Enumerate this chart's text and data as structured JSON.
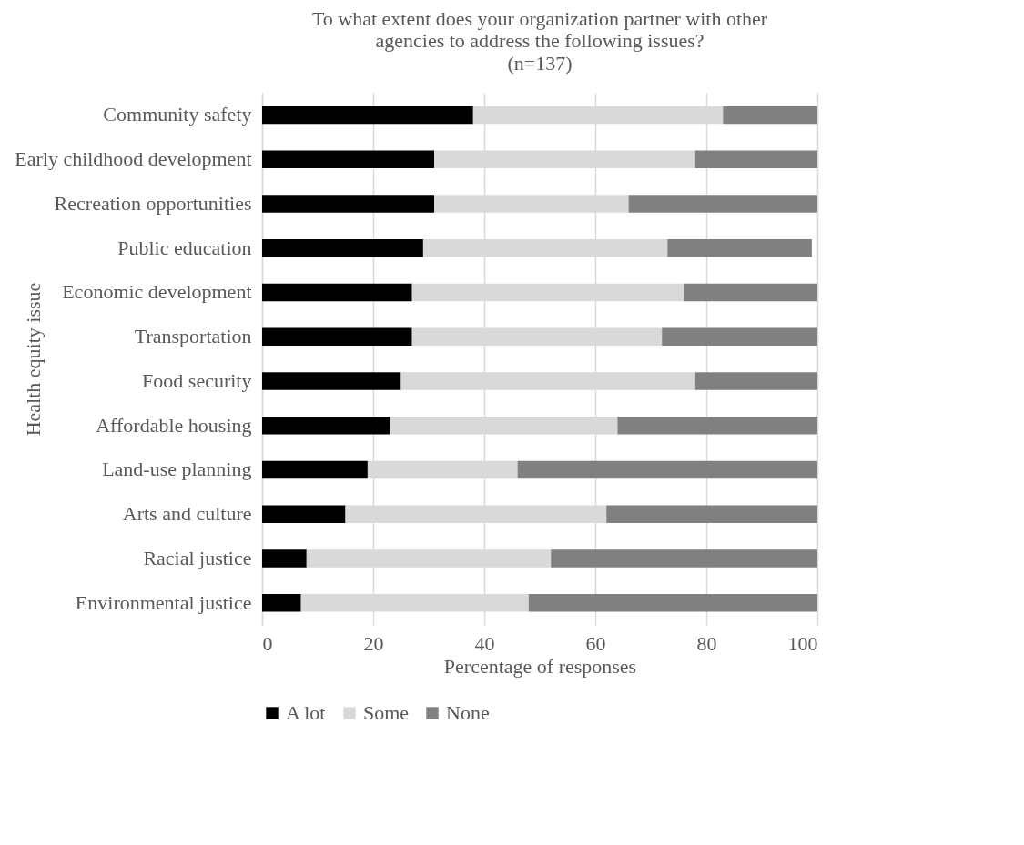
{
  "chart_data": {
    "type": "bar",
    "title": "To what extent does your organization partner with other agencies to address the following issues?",
    "subtitle": "(n=137)",
    "xlabel": "Percentage of responses",
    "ylabel": "Health equity issue",
    "orientation": "horizontal",
    "stacked": true,
    "categories": [
      "Community safety",
      "Early childhood development",
      "Recreation opportunities",
      "Public education",
      "Economic development",
      "Transportation",
      "Food security",
      "Affordable housing",
      "Land-use planning",
      "Arts and culture",
      "Racial justice",
      "Environmental justice"
    ],
    "series": [
      {
        "name": "A lot",
        "color": "#000000",
        "values": [
          38,
          31,
          31,
          29,
          27,
          27,
          25,
          23,
          19,
          15,
          8,
          7
        ]
      },
      {
        "name": "Some",
        "color": "#d9d9d9",
        "values": [
          45,
          47,
          35,
          44,
          49,
          45,
          53,
          41,
          27,
          47,
          44,
          41
        ]
      },
      {
        "name": "None",
        "color": "#808080",
        "values": [
          17,
          22,
          34,
          26,
          24,
          28,
          22,
          36,
          54,
          38,
          48,
          52
        ]
      }
    ],
    "xlim": [
      0,
      100
    ],
    "xticks": [
      0,
      20,
      40,
      60,
      80,
      100
    ],
    "grid": "x",
    "legend": "bottom"
  }
}
